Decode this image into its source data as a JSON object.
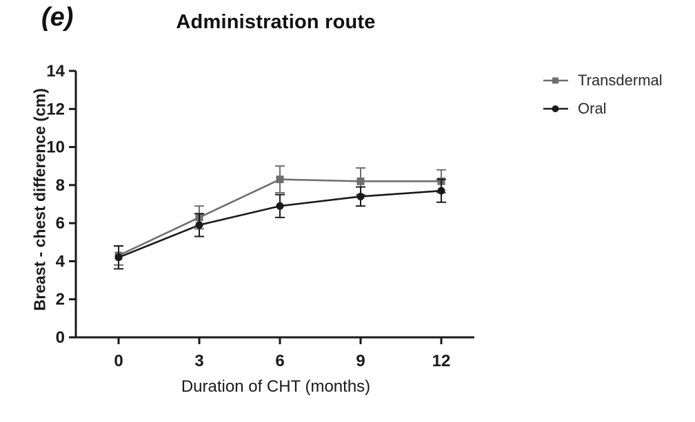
{
  "panel_label": "(e)",
  "title": "Administration route",
  "legend": {
    "items": [
      {
        "label": "Transdermal",
        "marker": "square",
        "color": "#6e6e6e"
      },
      {
        "label": "Oral",
        "marker": "circle",
        "color": "#1a1a1a"
      }
    ]
  },
  "chart_data": {
    "type": "line",
    "title": "Administration route",
    "xlabel": "Duration of CHT (months)",
    "ylabel": "Breast - chest difference (cm)",
    "x": [
      0,
      3,
      6,
      9,
      12
    ],
    "xtick_labels": [
      "0",
      "3",
      "6",
      "9",
      "12"
    ],
    "ylim": [
      0,
      14
    ],
    "ytick_step": 2,
    "grid": false,
    "legend_position": "right",
    "error_bars": true,
    "series": [
      {
        "name": "Transdermal",
        "marker": "square",
        "color": "#6e6e6e",
        "values": [
          4.3,
          6.3,
          8.3,
          8.2,
          8.2
        ],
        "error": [
          0.5,
          0.6,
          0.7,
          0.7,
          0.6
        ]
      },
      {
        "name": "Oral",
        "marker": "circle",
        "color": "#1a1a1a",
        "values": [
          4.2,
          5.9,
          6.9,
          7.4,
          7.7
        ],
        "error": [
          0.6,
          0.6,
          0.6,
          0.5,
          0.6
        ]
      }
    ]
  }
}
